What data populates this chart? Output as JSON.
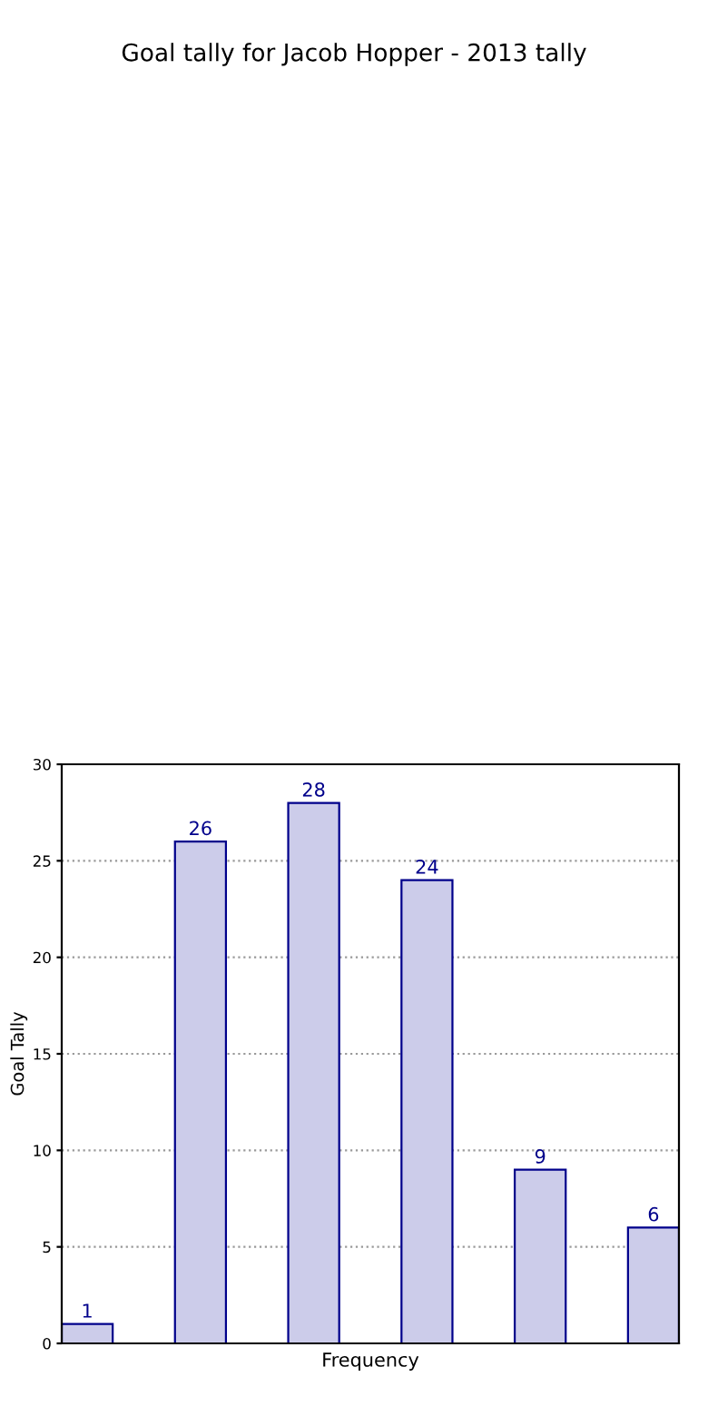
{
  "chart_data": {
    "type": "bar",
    "title": "Goal tally for Jacob Hopper - 2013 tally",
    "xlabel": "Frequency",
    "ylabel": "Goal Tally",
    "categories": [
      null,
      null,
      null,
      null,
      null,
      null
    ],
    "values": [
      1,
      26,
      28,
      24,
      9,
      6
    ],
    "color": "#ccccea",
    "ylim": [
      0,
      30
    ],
    "yticks": [
      0,
      5,
      10,
      15,
      20,
      25,
      30
    ],
    "grid": "y",
    "data_labels": true
  }
}
